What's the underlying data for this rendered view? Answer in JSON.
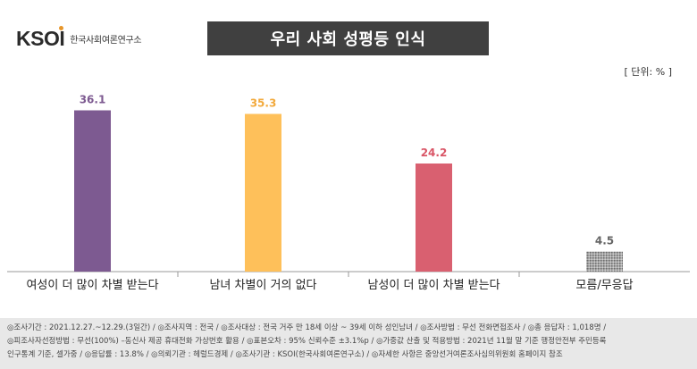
{
  "logo": {
    "mark": "KSOI",
    "subtitle": "한국사회여론연구소"
  },
  "colors": {
    "title_bg": "#404040",
    "logo_dot": "#e7962a",
    "footer_bg": "#e8e8e8"
  },
  "chart_data": {
    "type": "bar",
    "title": "우리 사회 성평등 인식",
    "unit_label": "[ 단위: % ]",
    "categories": [
      "여성이 더 많이 차별 받는다",
      "남녀 차별이 거의 없다",
      "남성이 더 많이 차별 받는다",
      "모름/무응답"
    ],
    "values": [
      36.1,
      35.3,
      24.2,
      4.5
    ],
    "value_labels": [
      "36.1",
      "35.3",
      "24.2",
      "4.5"
    ],
    "colors": [
      "#7d5a91",
      "#fec05a",
      "#d96070",
      "#a5a5a5"
    ],
    "label_colors": [
      "#7d5a91",
      "#f2a93b",
      "#d95566",
      "#666666"
    ],
    "pattern": [
      false,
      false,
      false,
      true
    ],
    "ylim": [
      0,
      40
    ],
    "grid": false,
    "legend": "none"
  },
  "footer": {
    "lines": [
      "◎조사기간 : 2021.12.27.~12.29.(3일간)  / ◎조사지역 : 전국 / ◎조사대상 : 전국 거주 만 18세 이상 ~ 39세 이하 성인남녀 / ◎조사방법 : 무선 전화면접조사 / ◎총 응답자 : 1,018명 /",
      "◎피조사자선정방법 : 무선(100%) –동신사 제공 휴대전화 가상번호 활용 / ◎표본오차 : 95% 신뢰수준 ±3.1%p / ◎가중값 산출 및 적용방법 : 2021년 11월 말 기준 행정안전부 주민등록",
      "인구통계 기준, 셀가중 / ◎응답률 : 13.8% / ◎의뢰기관 : 헤럴드경제 / ◎조사기관 : KSOI(한국사회여론연구소) / ◎자세한 사항은 중앙선거여론조사심의위원회 홈페이지 참조"
    ]
  }
}
